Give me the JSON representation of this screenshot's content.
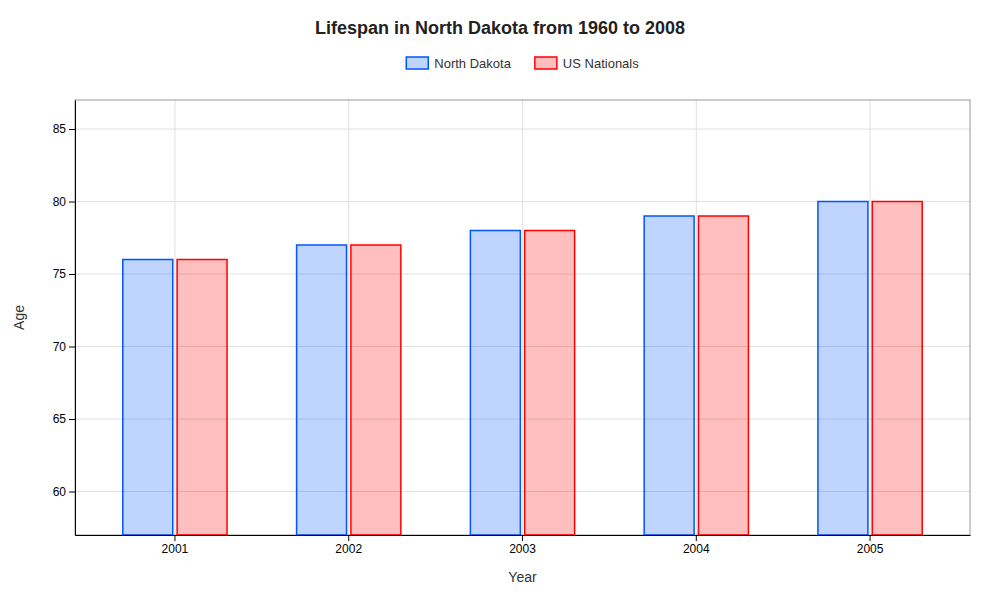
{
  "chart_data": {
    "type": "bar",
    "title": "Lifespan in North Dakota from 1960 to 2008",
    "x_label": "Year",
    "y_label": "Age",
    "categories": [
      "2001",
      "2002",
      "2003",
      "2004",
      "2005"
    ],
    "series": [
      {
        "name": "North Dakota",
        "color": "#0055ff",
        "values": [
          76,
          77,
          78,
          79,
          80
        ]
      },
      {
        "name": "US Nationals",
        "color": "#ff0000",
        "values": [
          76,
          77,
          78,
          79,
          80
        ]
      }
    ],
    "ylim": [
      57,
      87
    ],
    "yticks": [
      60,
      65,
      70,
      75,
      80,
      85
    ],
    "grid": true,
    "legend": "top"
  }
}
